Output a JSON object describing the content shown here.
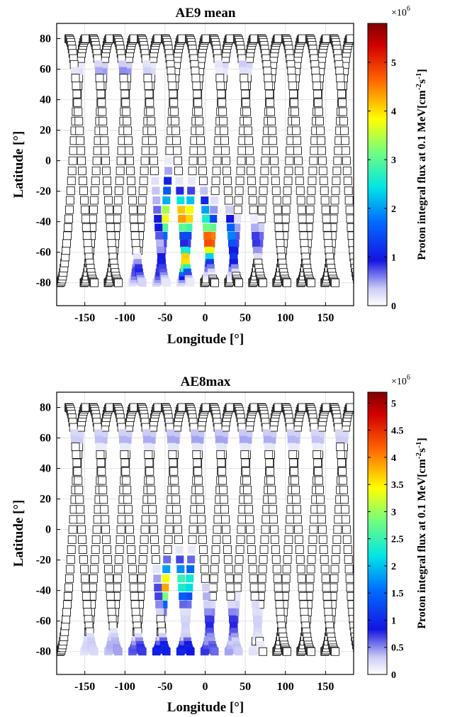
{
  "chart_data": [
    {
      "type": "scatter",
      "title": "AE9 mean",
      "xlabel": "Longitude [°]",
      "ylabel": "Latitude [°]",
      "xlim": [
        -185,
        185
      ],
      "ylim": [
        -95,
        90
      ],
      "xticks": [
        "-150",
        "-100",
        "-50",
        "0",
        "50",
        "100",
        "150"
      ],
      "yticks": [
        "80",
        "60",
        "40",
        "20",
        "0",
        "-20",
        "-40",
        "-60",
        "-80"
      ],
      "grid": true,
      "marker": "square",
      "colorbar": {
        "label": "Proton integral flux at 0.1 MeV[cm-2s-1]",
        "label_main": "Proton integral flux at 0.1 MeV[cm",
        "label_e1": "-2",
        "label_mid": "s",
        "label_e2": "-1",
        "label_end": "]",
        "multiplier": "×10",
        "multiplier_exp": "6",
        "range": [
          0,
          5.8
        ],
        "ticks": [
          "0",
          "1",
          "2",
          "3",
          "4",
          "5"
        ],
        "colormap": "jet with light-to-blue low end"
      },
      "orbits": {
        "ascending_start_lon": [
          -181,
          -151,
          -121,
          -91,
          -61,
          -31,
          -1,
          29,
          59,
          89,
          119,
          149
        ],
        "descending_start_lon": [
          -170,
          -140,
          -110,
          -80,
          -50,
          -20,
          10,
          40,
          70,
          100,
          130,
          160
        ],
        "half_period_lon": 32,
        "max_lat": 80,
        "samples_per_pass": 38
      },
      "flux_regions": [
        {
          "lon": -42,
          "lat": -38,
          "sigma_lon": 9,
          "sigma_lat": 10,
          "peak": 5.6
        },
        {
          "lon": -25,
          "lat": -35,
          "sigma_lon": 8,
          "sigma_lat": 9,
          "peak": 5.2
        },
        {
          "lon": -5,
          "lat": -40,
          "sigma_lon": 9,
          "sigma_lat": 10,
          "peak": 3.3
        },
        {
          "lon": 5,
          "lat": -52,
          "sigma_lon": 10,
          "sigma_lat": 9,
          "peak": 5.0
        },
        {
          "lon": 22,
          "lat": -50,
          "sigma_lon": 9,
          "sigma_lat": 9,
          "peak": 3.8
        },
        {
          "lon": -30,
          "lat": -65,
          "sigma_lon": 14,
          "sigma_lat": 6,
          "peak": 4.6
        },
        {
          "lon": -48,
          "lat": -22,
          "sigma_lon": 8,
          "sigma_lat": 10,
          "peak": 1.6
        },
        {
          "lon": -70,
          "lat": -72,
          "sigma_lon": 20,
          "sigma_lat": 5,
          "peak": 1.1
        },
        {
          "lon": 30,
          "lat": -63,
          "sigma_lon": 15,
          "sigma_lat": 6,
          "peak": 1.3
        },
        {
          "lon": 60,
          "lat": -52,
          "sigma_lon": 12,
          "sigma_lat": 7,
          "peak": 0.9
        },
        {
          "lon": -110,
          "lat": 60,
          "sigma_lon": 35,
          "sigma_lat": 3,
          "peak": 0.6
        },
        {
          "lon": 40,
          "lat": 62,
          "sigma_lon": 20,
          "sigma_lat": 3,
          "peak": 0.4
        }
      ]
    },
    {
      "type": "scatter",
      "title": "AE8max",
      "xlabel": "Longitude [°]",
      "ylabel": "Latitude [°]",
      "xlim": [
        -185,
        185
      ],
      "ylim": [
        -95,
        90
      ],
      "xticks": [
        "-150",
        "-100",
        "-50",
        "0",
        "50",
        "100",
        "150"
      ],
      "yticks": [
        "80",
        "60",
        "40",
        "20",
        "0",
        "-20",
        "-40",
        "-60",
        "-80"
      ],
      "grid": true,
      "marker": "square",
      "colorbar": {
        "label": "Proton integral flux at 0.1 MeV[cm-2s-1]",
        "label_main": "Proton integral flux at 0.1 MeV[cm",
        "label_e1": "-2",
        "label_mid": "s",
        "label_e2": "-1",
        "label_end": "]",
        "multiplier": "×10",
        "multiplier_exp": "6",
        "range": [
          0,
          5.2
        ],
        "ticks": [
          "0",
          "0.5",
          "1",
          "1.5",
          "2",
          "2.5",
          "3",
          "3.5",
          "4",
          "4.5",
          "5"
        ],
        "colormap": "jet with light-to-blue low end"
      },
      "orbits": {
        "ascending_start_lon": [
          -181,
          -151,
          -121,
          -91,
          -61,
          -31,
          -1,
          29,
          59,
          89,
          119,
          149
        ],
        "descending_start_lon": [
          -170,
          -140,
          -110,
          -80,
          -50,
          -20,
          10,
          40,
          70,
          100,
          130,
          160
        ],
        "half_period_lon": 32,
        "max_lat": 80,
        "samples_per_pass": 38
      },
      "flux_regions": [
        {
          "lon": -45,
          "lat": -38,
          "sigma_lon": 7,
          "sigma_lat": 9,
          "peak": 5.0
        },
        {
          "lon": -25,
          "lat": -33,
          "sigma_lon": 7,
          "sigma_lat": 9,
          "peak": 3.2
        },
        {
          "lon": -10,
          "lat": -45,
          "sigma_lon": 8,
          "sigma_lat": 7,
          "peak": 1.2
        },
        {
          "lon": -40,
          "lat": -78,
          "sigma_lon": 55,
          "sigma_lat": 5,
          "peak": 1.0
        },
        {
          "lon": 20,
          "lat": -62,
          "sigma_lon": 30,
          "sigma_lat": 8,
          "peak": 0.9
        },
        {
          "lon": 50,
          "lat": -52,
          "sigma_lon": 8,
          "sigma_lat": 6,
          "peak": 0.9
        },
        {
          "lon": 0,
          "lat": 60,
          "sigma_lon": 200,
          "sigma_lat": 4,
          "peak": 0.45
        },
        {
          "lon": -120,
          "lat": -75,
          "sigma_lon": 30,
          "sigma_lat": 6,
          "peak": 0.4
        }
      ]
    }
  ]
}
